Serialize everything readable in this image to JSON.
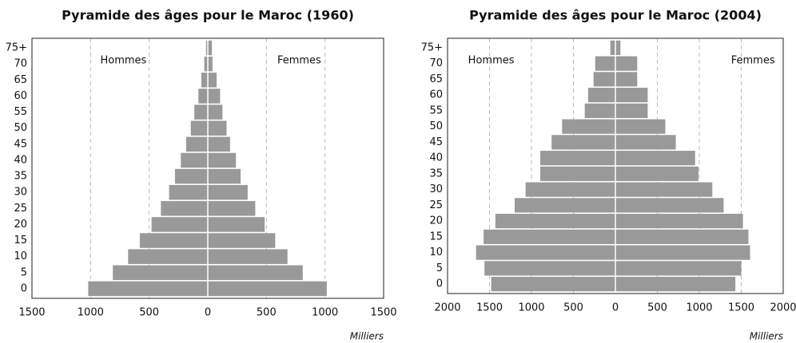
{
  "chart_data": [
    {
      "type": "bar",
      "orientation": "horizontal",
      "title": "Pyramide des âges pour le Maroc (1960)",
      "xlabel": "Milliers",
      "categories": [
        "0",
        "5",
        "10",
        "15",
        "20",
        "25",
        "30",
        "35",
        "40",
        "45",
        "50",
        "55",
        "60",
        "65",
        "70",
        "75+"
      ],
      "series": [
        {
          "name": "Hommes",
          "color": "#999999",
          "values": [
            -1020,
            -810,
            -680,
            -580,
            -480,
            -400,
            -330,
            -280,
            -230,
            -185,
            -145,
            -115,
            -80,
            -55,
            -30,
            -15
          ]
        },
        {
          "name": "Femmes",
          "color": "#999999",
          "values": [
            1015,
            810,
            680,
            575,
            485,
            405,
            340,
            280,
            240,
            190,
            160,
            125,
            105,
            75,
            40,
            35
          ]
        }
      ],
      "xlim": [
        -1500,
        1500
      ],
      "xticks": [
        {
          "value": -1500,
          "label": "1500"
        },
        {
          "value": -1000,
          "label": "1000"
        },
        {
          "value": -500,
          "label": "500"
        },
        0,
        500,
        1000,
        1500
      ],
      "grid": true
    },
    {
      "type": "bar",
      "orientation": "horizontal",
      "title": "Pyramide des âges pour le Maroc (2004)",
      "xlabel": "Milliers",
      "categories": [
        "0",
        "5",
        "10",
        "15",
        "20",
        "25",
        "30",
        "35",
        "40",
        "45",
        "50",
        "55",
        "60",
        "65",
        "70",
        "75+"
      ],
      "series": [
        {
          "name": "Hommes",
          "color": "#999999",
          "values": [
            -1480,
            -1560,
            -1660,
            -1570,
            -1430,
            -1200,
            -1070,
            -895,
            -895,
            -760,
            -635,
            -365,
            -325,
            -260,
            -240,
            -60
          ]
        },
        {
          "name": "Femmes",
          "color": "#999999",
          "values": [
            1430,
            1500,
            1605,
            1585,
            1520,
            1290,
            1155,
            990,
            950,
            720,
            595,
            385,
            385,
            260,
            260,
            60
          ]
        }
      ],
      "xlim": [
        -2000,
        2000
      ],
      "xticks": [
        {
          "value": -2000,
          "label": "2000"
        },
        {
          "value": -1500,
          "label": "1500"
        },
        {
          "value": -1000,
          "label": "1000"
        },
        {
          "value": -500,
          "label": "500"
        },
        0,
        500,
        1000,
        1500,
        2000
      ],
      "grid": true
    }
  ]
}
